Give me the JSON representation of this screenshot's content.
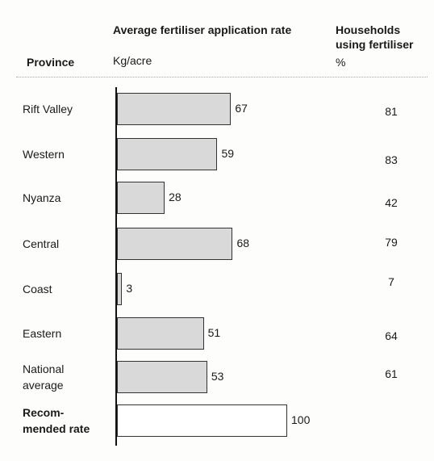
{
  "chart_data": {
    "type": "bar",
    "orientation": "horizontal",
    "category_header": "Province",
    "value_header": "Average fertiliser application rate",
    "value_unit": "Kg/acre",
    "second_header": "Households using fertiliser",
    "second_unit": "%",
    "categories": [
      "Rift Valley",
      "Western",
      "Nyanza",
      "Central",
      "Coast",
      "Eastern",
      "National\naverage",
      "Recom-\nmended rate"
    ],
    "values": [
      67,
      59,
      28,
      68,
      3,
      51,
      53,
      100
    ],
    "households": [
      81,
      83,
      42,
      79,
      7,
      64,
      61,
      null
    ],
    "colors": [
      "#d9d9d9",
      "#d9d9d9",
      "#d9d9d9",
      "#d9d9d9",
      "#d9d9d9",
      "#d9d9d9",
      "#d9d9d9",
      "#ffffff"
    ],
    "bold_categories": [
      false,
      false,
      false,
      false,
      false,
      false,
      false,
      true
    ]
  }
}
